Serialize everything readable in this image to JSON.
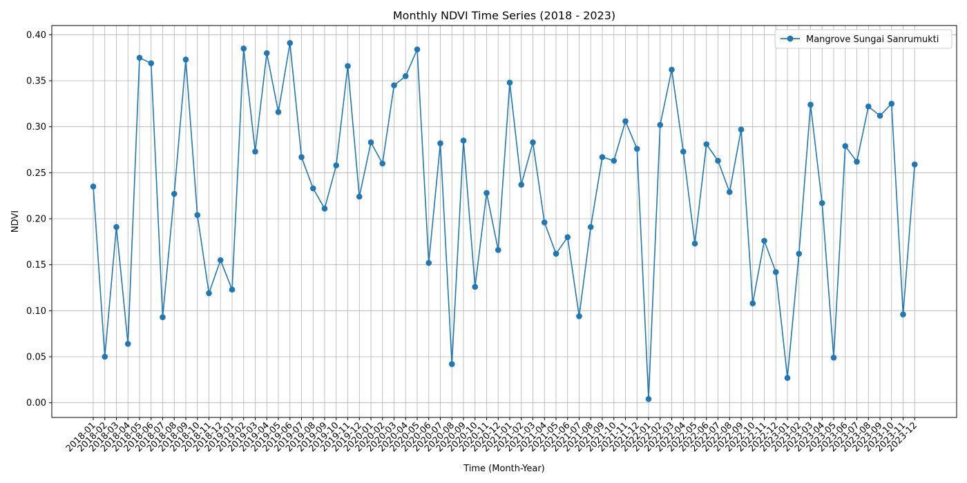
{
  "chart_data": {
    "type": "line",
    "title": "Monthly NDVI Time Series (2018 - 2023)",
    "xlabel": "Time (Month-Year)",
    "ylabel": "NDVI",
    "ylim": [
      -0.016,
      0.41
    ],
    "yticks": [
      0.0,
      0.05,
      0.1,
      0.15,
      0.2,
      0.25,
      0.3,
      0.35,
      0.4
    ],
    "ytick_labels": [
      "0.00",
      "0.05",
      "0.10",
      "0.15",
      "0.20",
      "0.25",
      "0.30",
      "0.35",
      "0.40"
    ],
    "grid": true,
    "legend_position": "top-right",
    "categories": [
      "2018-01",
      "2018-02",
      "2018-03",
      "2018-04",
      "2018-05",
      "2018-06",
      "2018-07",
      "2018-08",
      "2018-09",
      "2018-10",
      "2018-11",
      "2018-12",
      "2019-01",
      "2019-02",
      "2019-03",
      "2019-04",
      "2019-05",
      "2019-06",
      "2019-07",
      "2019-08",
      "2019-09",
      "2019-10",
      "2019-11",
      "2019-12",
      "2020-01",
      "2020-02",
      "2020-03",
      "2020-04",
      "2020-05",
      "2020-06",
      "2020-07",
      "2020-08",
      "2020-09",
      "2020-10",
      "2020-11",
      "2020-12",
      "2021-01",
      "2021-02",
      "2021-03",
      "2021-04",
      "2021-05",
      "2021-06",
      "2021-07",
      "2021-08",
      "2021-09",
      "2021-10",
      "2021-11",
      "2021-12",
      "2022-01",
      "2022-02",
      "2022-03",
      "2022-04",
      "2022-05",
      "2022-06",
      "2022-07",
      "2022-08",
      "2022-09",
      "2022-10",
      "2022-11",
      "2022-12",
      "2023-01",
      "2023-02",
      "2023-03",
      "2023-04",
      "2023-05",
      "2023-06",
      "2023-07",
      "2023-08",
      "2023-09",
      "2023-10",
      "2023-11",
      "2023-12"
    ],
    "series": [
      {
        "name": "Mangrove Sungai Sanrumukti",
        "color": "#1f77b4",
        "marker": "circle",
        "values": [
          0.235,
          0.05,
          0.191,
          0.064,
          0.375,
          0.369,
          0.093,
          0.227,
          0.373,
          0.204,
          0.119,
          0.155,
          0.123,
          0.385,
          0.273,
          0.38,
          0.316,
          0.391,
          0.267,
          0.233,
          0.211,
          0.258,
          0.366,
          0.224,
          0.283,
          0.26,
          0.345,
          0.355,
          0.384,
          0.152,
          0.282,
          0.042,
          0.285,
          0.126,
          0.228,
          0.166,
          0.348,
          0.237,
          0.283,
          0.196,
          0.162,
          0.18,
          0.094,
          0.191,
          0.267,
          0.263,
          0.306,
          0.276,
          0.004,
          0.302,
          0.362,
          0.273,
          0.173,
          0.281,
          0.263,
          0.229,
          0.297,
          0.108,
          0.176,
          0.142,
          0.027,
          0.162,
          0.324,
          0.217,
          0.049,
          0.279,
          0.262,
          0.322,
          0.312,
          0.325,
          0.096,
          0.259
        ]
      }
    ]
  }
}
